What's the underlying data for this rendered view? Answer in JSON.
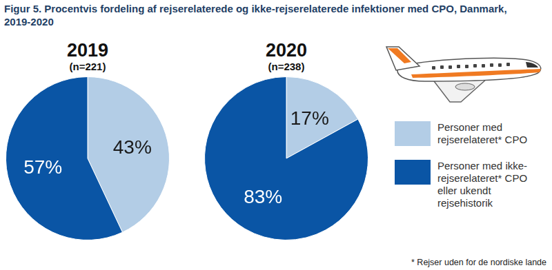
{
  "title": "Figur 5. Procentvis fordeling af rejserelaterede og ikke-rejserelaterede infektioner med CPO, Danmark, 2019-2020",
  "legend": "right",
  "footnote": "* Rejser uden for de nordiske lande",
  "chart_data": [
    {
      "type": "pie",
      "title": "2019",
      "subtitle": "(n=221)",
      "categories": [
        "Personer med rejserelateret* CPO",
        "Personer med ikke-rejserelateret* CPO eller ukendt rejsehistorik"
      ],
      "values": [
        43,
        57
      ],
      "value_labels": [
        "43%",
        "57%"
      ],
      "colors": [
        "#b3cde6",
        "#0a55a5"
      ],
      "data_labels": true
    },
    {
      "type": "pie",
      "title": "2020",
      "subtitle": "(n=238)",
      "categories": [
        "Personer med rejserelateret* CPO",
        "Personer med ikke-rejserelateret* CPO eller ukendt rejsehistorik"
      ],
      "values": [
        17,
        83
      ],
      "value_labels": [
        "17%",
        "83%"
      ],
      "colors": [
        "#b3cde6",
        "#0a55a5"
      ],
      "data_labels": true
    }
  ]
}
